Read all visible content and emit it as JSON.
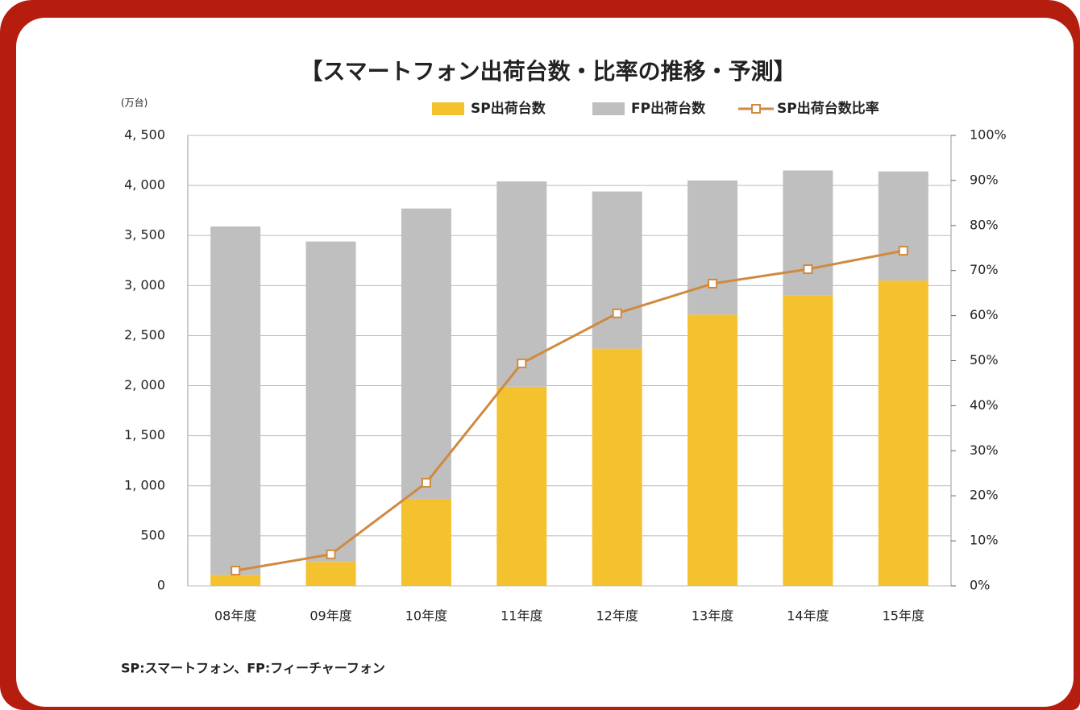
{
  "chart_data": {
    "type": "bar",
    "stacked": true,
    "title": "【スマートフォン出荷台数・比率の推移・予測】",
    "y_unit": "(万台)",
    "note": "SP:スマートフォン、FP:フィーチャーフォン",
    "categories": [
      "08年度",
      "09年度",
      "10年度",
      "11年度",
      "12年度",
      "13年度",
      "14年度",
      "15年度"
    ],
    "series": [
      {
        "name": "SP出荷台数",
        "type": "bar",
        "color": "#f4c22e",
        "values": [
          110,
          240,
          870,
          1990,
          2370,
          2710,
          2900,
          3050
        ]
      },
      {
        "name": "FP出荷台数",
        "type": "bar",
        "color": "#bfbfbf",
        "values": [
          3480,
          3200,
          2900,
          2050,
          1570,
          1340,
          1250,
          1090
        ]
      },
      {
        "name": "SP出荷台数比率",
        "type": "line",
        "axis": "y2",
        "color": "#d08a40",
        "values": [
          3.4,
          7.0,
          22.9,
          49.4,
          60.5,
          67.1,
          70.3,
          74.4
        ]
      }
    ],
    "ylim": [
      0,
      4500
    ],
    "yticks": [
      0,
      500,
      {
        "value": 1000,
        "label": "1, 000"
      },
      {
        "value": 1500,
        "label": "1, 500"
      },
      {
        "value": 2000,
        "label": "2, 000"
      },
      {
        "value": 2500,
        "label": "2, 500"
      },
      {
        "value": 3000,
        "label": "3, 000"
      },
      {
        "value": 3500,
        "label": "3, 500"
      },
      {
        "value": 4000,
        "label": "4, 000"
      },
      {
        "value": 4500,
        "label": "4, 500"
      }
    ],
    "y2lim": [
      0,
      100
    ],
    "y2ticks": [
      {
        "value": 0,
        "label": "0%"
      },
      {
        "value": 10,
        "label": "10%"
      },
      {
        "value": 20,
        "label": "20%"
      },
      {
        "value": 30,
        "label": "30%"
      },
      {
        "value": 40,
        "label": "40%"
      },
      {
        "value": 50,
        "label": "50%"
      },
      {
        "value": 60,
        "label": "60%"
      },
      {
        "value": 70,
        "label": "70%"
      },
      {
        "value": 80,
        "label": "80%"
      },
      {
        "value": 90,
        "label": "90%"
      },
      {
        "value": 100,
        "label": "100%"
      }
    ],
    "grid": true
  }
}
